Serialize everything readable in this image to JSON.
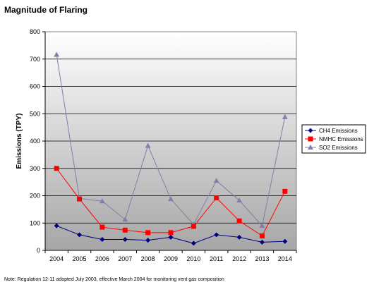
{
  "chart_data": {
    "type": "line",
    "title": "Magnitude of Flaring",
    "ylabel": "Emissions (TPY)",
    "xlabel": "",
    "ylim": [
      0,
      800
    ],
    "yticks": [
      0,
      100,
      200,
      300,
      400,
      500,
      600,
      700,
      800
    ],
    "grid": true,
    "legend_position": "right",
    "background": "vertical gradient white to gray",
    "categories": [
      "2004",
      "2005",
      "2006",
      "2007",
      "2008",
      "2009",
      "2010",
      "2011",
      "2012",
      "2013",
      "2014"
    ],
    "series": [
      {
        "name": "CH4 Emissions",
        "color": "#000080",
        "marker": "diamond",
        "values": [
          90,
          57,
          40,
          40,
          37,
          48,
          26,
          57,
          48,
          30,
          33
        ]
      },
      {
        "name": "NMHC Emissions",
        "color": "#ff0000",
        "marker": "square",
        "values": [
          300,
          188,
          85,
          74,
          65,
          65,
          88,
          192,
          108,
          53,
          216
        ]
      },
      {
        "name": "SO2 Emissions",
        "color": "#7f7fa8",
        "marker": "triangle",
        "values": [
          716,
          190,
          180,
          113,
          383,
          188,
          95,
          255,
          183,
          90,
          488
        ]
      }
    ]
  },
  "note": "Note: Regulation 12-11 adopted July 2003, effective March 2004 for monitoring vent gas composition"
}
